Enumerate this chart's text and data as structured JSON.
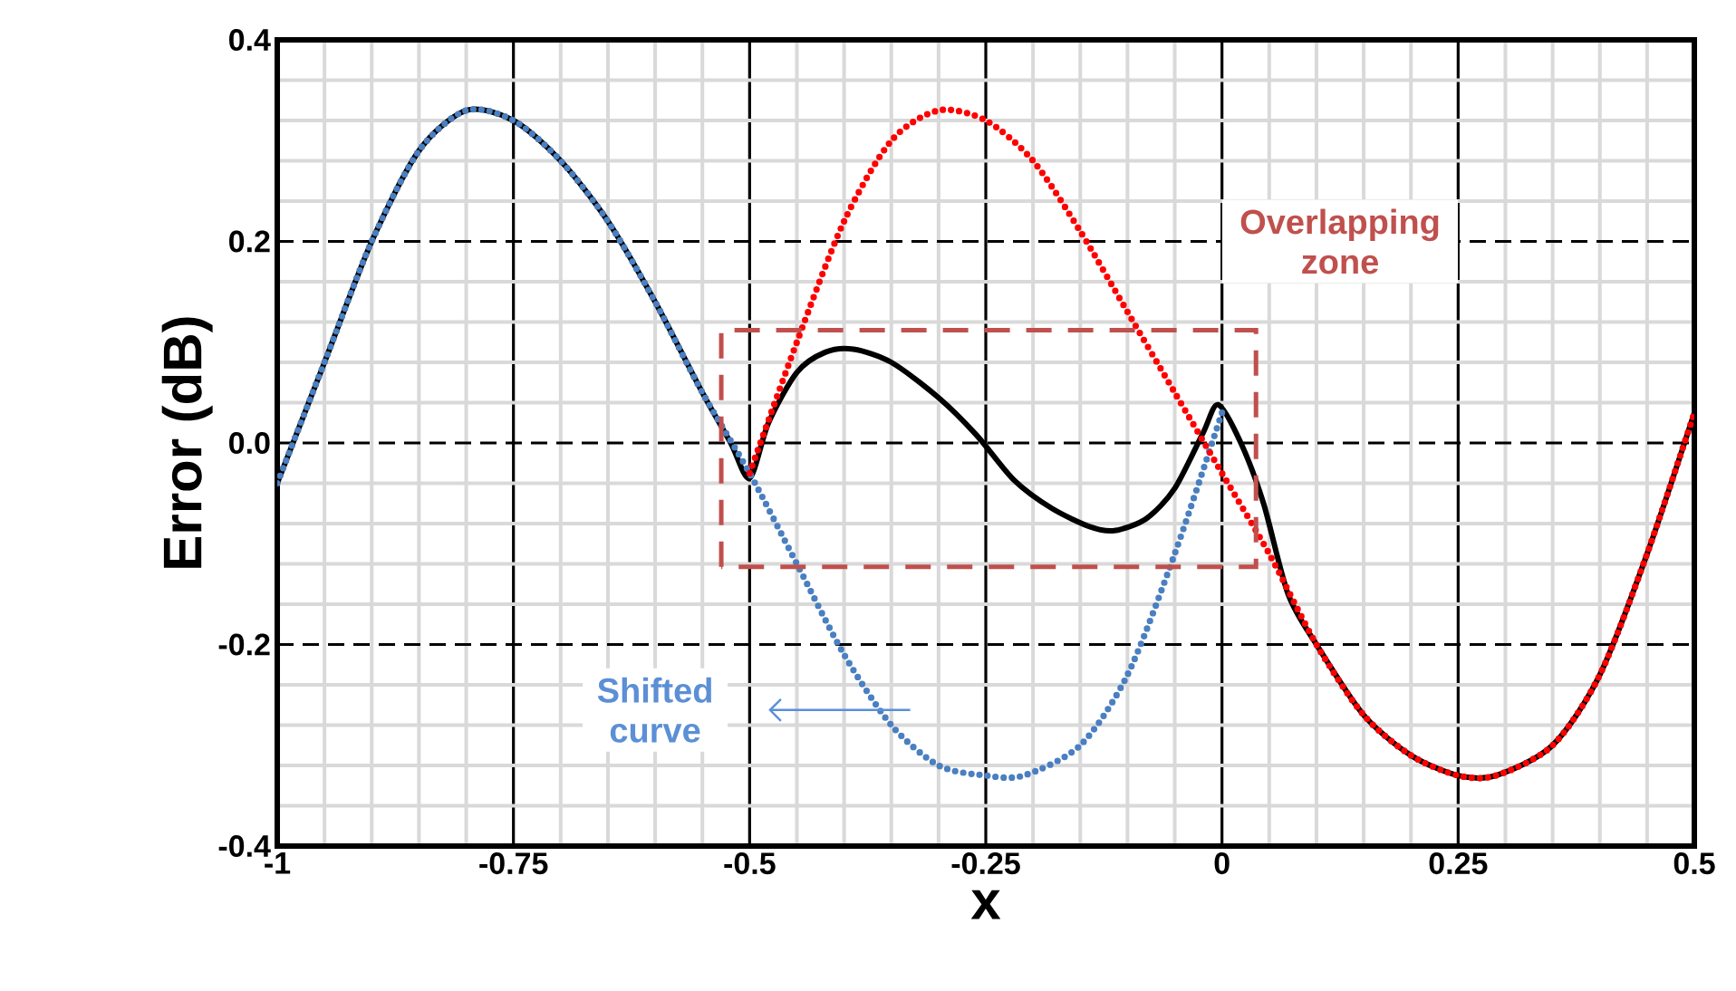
{
  "chart_data": {
    "type": "line",
    "xlabel": "x",
    "ylabel": "Error (dB)",
    "xlim": [
      -1,
      0.5
    ],
    "ylim": [
      -0.4,
      0.4
    ],
    "xticks": [
      -1,
      -0.75,
      -0.5,
      -0.25,
      0,
      0.25,
      0.5
    ],
    "yticks": [
      -0.4,
      -0.2,
      {
        "value": 0,
        "label": "0.0"
      },
      0.2,
      0.4
    ],
    "grid": true,
    "marker": "none",
    "annotations": [
      "Overlapping zone",
      "Shifted curve"
    ],
    "series": [
      {
        "color": "#000000",
        "line_style": "solid",
        "x": [
          -1,
          -0.95,
          -0.9,
          -0.85,
          -0.8,
          -0.75,
          -0.7,
          -0.65,
          -0.6,
          -0.55,
          -0.52,
          -0.5,
          -0.48,
          -0.45,
          -0.42,
          -0.39,
          -0.35,
          -0.3,
          -0.26,
          -0.22,
          -0.18,
          -0.14,
          -0.114,
          -0.08,
          -0.05,
          -0.02,
          -0.004,
          0.02,
          0.044,
          0.07,
          0.1,
          0.15,
          0.2,
          0.25,
          0.29,
          0.35,
          0.4,
          0.45,
          0.5
        ],
        "values": [
          -0.04,
          0.08,
          0.2,
          0.29,
          0.33,
          0.32,
          0.28,
          0.22,
          0.14,
          0.05,
          0.0,
          -0.035,
          0.02,
          0.07,
          0.09,
          0.093,
          0.08,
          0.045,
          0.008,
          -0.037,
          -0.065,
          -0.083,
          -0.087,
          -0.075,
          -0.045,
          0.01,
          0.038,
          0.0,
          -0.06,
          -0.15,
          -0.2,
          -0.27,
          -0.31,
          -0.33,
          -0.33,
          -0.3,
          -0.23,
          -0.11,
          0.03
        ]
      },
      {
        "color": "#4a7fc1",
        "line_style": "dotted",
        "x": [
          -1,
          -0.95,
          -0.9,
          -0.85,
          -0.8,
          -0.75,
          -0.7,
          -0.65,
          -0.6,
          -0.55,
          -0.5,
          -0.45,
          -0.4,
          -0.35,
          -0.3,
          -0.25,
          -0.21,
          -0.15,
          -0.1,
          -0.05,
          0
        ],
        "values": [
          -0.04,
          0.08,
          0.2,
          0.29,
          0.33,
          0.32,
          0.28,
          0.22,
          0.14,
          0.05,
          -0.03,
          -0.12,
          -0.21,
          -0.28,
          -0.32,
          -0.33,
          -0.33,
          -0.3,
          -0.23,
          -0.11,
          0.03
        ]
      },
      {
        "color": "#ff0000",
        "line_style": "dotted",
        "x": [
          -0.5,
          -0.45,
          -0.4,
          -0.35,
          -0.3,
          -0.25,
          -0.2,
          -0.15,
          -0.1,
          -0.05,
          0,
          0.05,
          0.1,
          0.15,
          0.2,
          0.25,
          0.29,
          0.35,
          0.4,
          0.45,
          0.5
        ],
        "values": [
          -0.03,
          0.1,
          0.22,
          0.3,
          0.33,
          0.32,
          0.28,
          0.21,
          0.13,
          0.05,
          -0.03,
          -0.11,
          -0.2,
          -0.27,
          -0.31,
          -0.33,
          -0.33,
          -0.3,
          -0.23,
          -0.11,
          0.03
        ]
      }
    ]
  }
}
